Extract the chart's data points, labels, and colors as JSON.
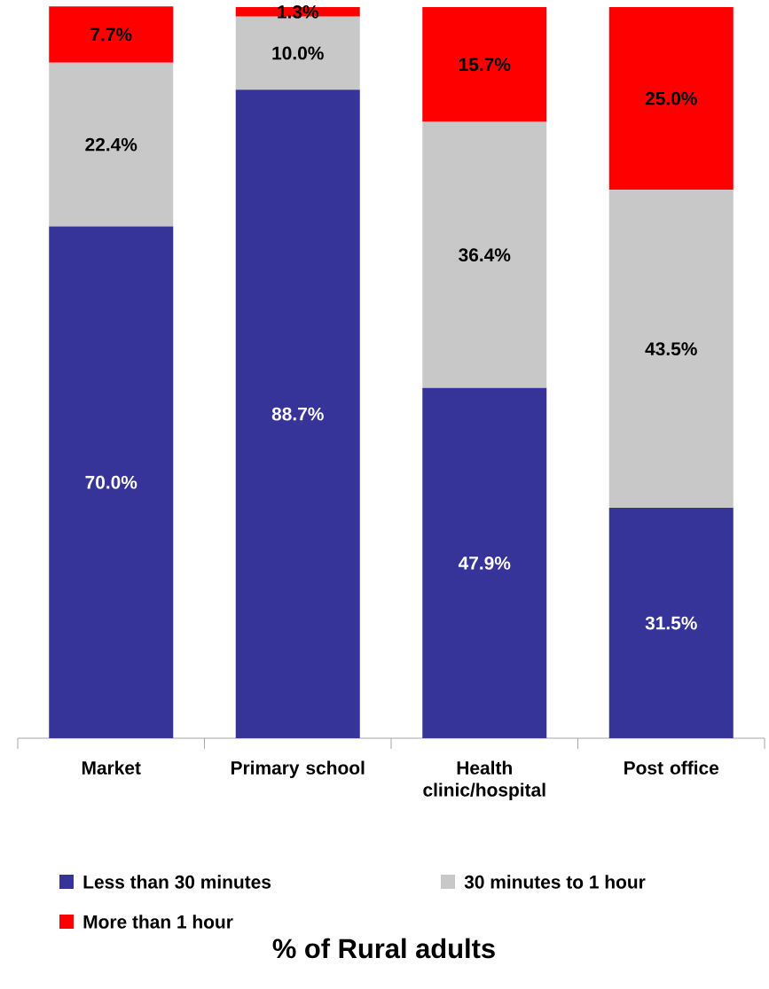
{
  "chart_data": {
    "type": "bar",
    "stacked": true,
    "annotations": [
      "% of Rural adults"
    ],
    "categories": [
      "Market",
      "Primary school",
      "Health clinic/hospital",
      "Post office"
    ],
    "series": [
      {
        "name": "Less than 30 minutes",
        "color": "#363399",
        "values": [
          70.0,
          88.7,
          47.9,
          31.5
        ],
        "value_labels": [
          "70.0%",
          "88.7%",
          "47.9%",
          "31.5%"
        ]
      },
      {
        "name": "30 minutes to 1 hour",
        "color": "#c8c8c8",
        "values": [
          22.4,
          10.0,
          36.4,
          43.5
        ],
        "value_labels": [
          "22.4%",
          "10.0%",
          "36.4%",
          "43.5%"
        ]
      },
      {
        "name": "More than 1 hour",
        "color": "#ff0000",
        "values": [
          7.7,
          1.3,
          15.7,
          25.0
        ],
        "value_labels": [
          "7.7%",
          "1.3%",
          "15.7%",
          "25.0%"
        ]
      }
    ],
    "legend": "bottom"
  }
}
